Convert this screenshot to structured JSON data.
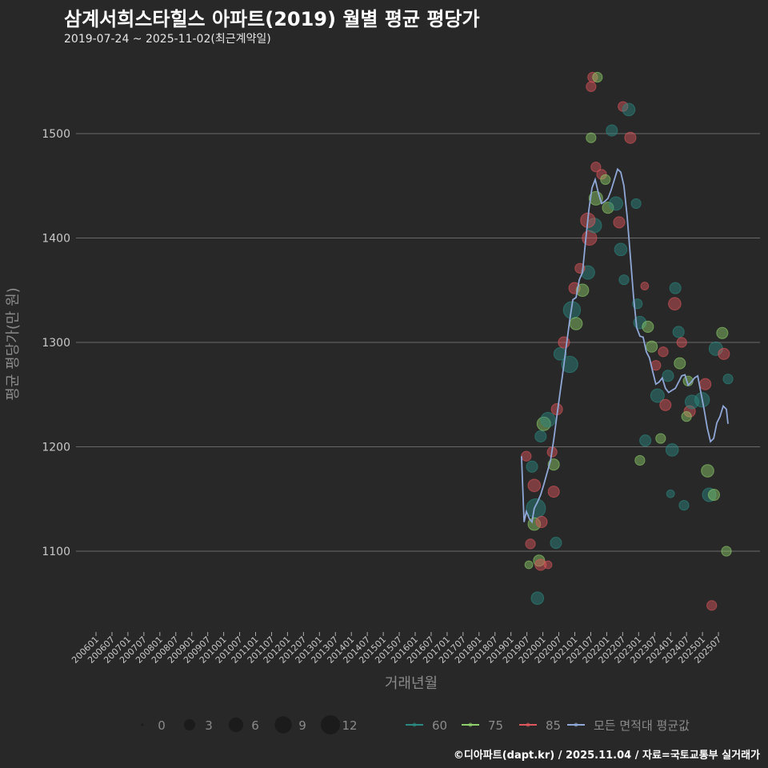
{
  "header": {
    "title": "삼계서희스타힐스 아파트(2019) 월별 평균 평당가",
    "subtitle": "2019-07-24 ~ 2025-11-02(최근계약일)"
  },
  "caption": "©디아파트(dapt.kr) / 2025.11.04 / 자료=국토교통부 실거래가",
  "chart_data": {
    "type": "scatter",
    "title": "삼계서희스타힐스 아파트(2019) 월별 평균 평당가",
    "xlabel": "거래년월",
    "ylabel": "평균 평당가(만 원)",
    "xlim": [
      2006.0,
      2025.5
    ],
    "ylim": [
      1025,
      1570
    ],
    "grid": true,
    "yticks": [
      1100,
      1200,
      1300,
      1400,
      1500
    ],
    "xticks": [
      "200601",
      "200607",
      "200701",
      "200707",
      "200801",
      "200807",
      "200901",
      "200907",
      "201001",
      "201007",
      "201101",
      "201107",
      "201201",
      "201207",
      "201301",
      "201307",
      "201401",
      "201407",
      "201501",
      "201507",
      "201601",
      "201607",
      "201701",
      "201707",
      "201801",
      "201807",
      "201901",
      "201907",
      "202001",
      "202007",
      "202101",
      "202107",
      "202201",
      "202207",
      "202301",
      "202307",
      "202401",
      "202407",
      "202501",
      "202507"
    ],
    "colors": {
      "60": "#2a8a82",
      "75": "#8fd16a",
      "85": "#e0575b",
      "avg": "#8fa8d8"
    },
    "size_legend": {
      "values": [
        0,
        3,
        6,
        9,
        12
      ]
    },
    "color_legend": [
      {
        "key": "60",
        "label": "60"
      },
      {
        "key": "75",
        "label": "75"
      },
      {
        "key": "85",
        "label": "85"
      },
      {
        "key": "avg",
        "label": "모든 면적대 평균값"
      }
    ],
    "legend_position": "bottom",
    "points_columns": [
      "year",
      "value",
      "area",
      "count"
    ],
    "points": [
      [
        2019.48,
        1191,
        "85",
        2
      ],
      [
        2019.66,
        1181,
        "60",
        3
      ],
      [
        2019.73,
        1163,
        "85",
        4
      ],
      [
        2019.78,
        1141,
        "60",
        12
      ],
      [
        2019.73,
        1126,
        "75",
        4
      ],
      [
        2019.61,
        1107,
        "85",
        2
      ],
      [
        2019.56,
        1087,
        "75",
        1
      ],
      [
        2019.88,
        1091,
        "75",
        3
      ],
      [
        2019.96,
        1128,
        "85",
        3
      ],
      [
        2019.83,
        1055,
        "60",
        4
      ],
      [
        2019.93,
        1087,
        "85",
        3
      ],
      [
        2020.16,
        1087,
        "85",
        1
      ],
      [
        2019.93,
        1210,
        "60",
        3
      ],
      [
        2020.03,
        1222,
        "75",
        5
      ],
      [
        2020.16,
        1226,
        "60",
        6
      ],
      [
        2020.29,
        1195,
        "85",
        2
      ],
      [
        2020.34,
        1183,
        "75",
        3
      ],
      [
        2020.34,
        1157,
        "85",
        3
      ],
      [
        2020.41,
        1108,
        "60",
        3
      ],
      [
        2020.44,
        1236,
        "85",
        3
      ],
      [
        2020.54,
        1289,
        "60",
        4
      ],
      [
        2020.66,
        1300,
        "85",
        3
      ],
      [
        2020.84,
        1279,
        "60",
        8
      ],
      [
        2020.91,
        1331,
        "60",
        9
      ],
      [
        2020.99,
        1352,
        "85",
        3
      ],
      [
        2021.04,
        1318,
        "75",
        4
      ],
      [
        2021.24,
        1350,
        "75",
        4
      ],
      [
        2021.41,
        1367,
        "60",
        5
      ],
      [
        2021.46,
        1400,
        "85",
        6
      ],
      [
        2021.61,
        1412,
        "60",
        6
      ],
      [
        2021.66,
        1438,
        "75",
        5
      ],
      [
        2021.84,
        1461,
        "85",
        2
      ],
      [
        2022.04,
        1429,
        "75",
        3
      ],
      [
        2022.16,
        1503,
        "60",
        3
      ],
      [
        2022.29,
        1433,
        "60",
        5
      ],
      [
        2022.39,
        1415,
        "85",
        3
      ],
      [
        2022.44,
        1389,
        "60",
        4
      ],
      [
        2022.54,
        1360,
        "60",
        2
      ],
      [
        2022.51,
        1526,
        "85",
        2
      ],
      [
        2022.69,
        1523,
        "60",
        4
      ],
      [
        2022.74,
        1496,
        "85",
        3
      ],
      [
        2022.92,
        1433,
        "60",
        2
      ],
      [
        2022.96,
        1337,
        "60",
        2
      ],
      [
        2023.04,
        1319,
        "60",
        4
      ],
      [
        2023.19,
        1354,
        "85",
        1
      ],
      [
        2023.29,
        1315,
        "75",
        3
      ],
      [
        2023.41,
        1296,
        "75",
        3
      ],
      [
        2023.54,
        1278,
        "85",
        2
      ],
      [
        2023.59,
        1249,
        "60",
        5
      ],
      [
        2023.69,
        1208,
        "75",
        2
      ],
      [
        2023.84,
        1240,
        "85",
        3
      ],
      [
        2023.92,
        1268,
        "60",
        3
      ],
      [
        2024.15,
        1352,
        "60",
        3
      ],
      [
        2024.13,
        1337,
        "85",
        4
      ],
      [
        2024.25,
        1310,
        "60",
        3
      ],
      [
        2024.35,
        1300,
        "85",
        2
      ],
      [
        2024.29,
        1280,
        "75",
        3
      ],
      [
        2024.55,
        1263,
        "75",
        2
      ],
      [
        2024.6,
        1234,
        "85",
        3
      ],
      [
        2024.67,
        1243,
        "60",
        5
      ],
      [
        2024.99,
        1245,
        "60",
        6
      ],
      [
        2025.09,
        1260,
        "85",
        3
      ],
      [
        2025.16,
        1177,
        "75",
        4
      ],
      [
        2025.21,
        1154,
        "60",
        5
      ],
      [
        2025.29,
        1048,
        "85",
        2
      ],
      [
        2025.36,
        1154,
        "75",
        3
      ],
      [
        2025.42,
        1294,
        "60",
        5
      ],
      [
        2025.62,
        1309,
        "75",
        3
      ],
      [
        2025.67,
        1289,
        "85",
        3
      ],
      [
        2025.75,
        1100,
        "75",
        2
      ],
      [
        2025.8,
        1265,
        "60",
        2
      ],
      [
        2023.21,
        1206,
        "60",
        3
      ],
      [
        2023.04,
        1187,
        "75",
        2
      ],
      [
        2024.05,
        1197,
        "60",
        4
      ],
      [
        2024.42,
        1144,
        "60",
        2
      ],
      [
        2024.0,
        1155,
        "60",
        1
      ],
      [
        2024.5,
        1229,
        "75",
        2
      ],
      [
        2023.77,
        1291,
        "85",
        2
      ],
      [
        2021.56,
        1554,
        "85",
        2
      ],
      [
        2021.71,
        1554,
        "75",
        2
      ],
      [
        2021.51,
        1545,
        "85",
        2
      ],
      [
        2021.51,
        1496,
        "75",
        2
      ],
      [
        2021.66,
        1468,
        "85",
        2
      ],
      [
        2021.96,
        1456,
        "75",
        2
      ],
      [
        2021.41,
        1417,
        "85",
        6
      ],
      [
        2021.16,
        1371,
        "85",
        2
      ]
    ],
    "average_line": [
      [
        2019.33,
        1191
      ],
      [
        2019.41,
        1128
      ],
      [
        2019.48,
        1138
      ],
      [
        2019.58,
        1131
      ],
      [
        2019.66,
        1128
      ],
      [
        2019.73,
        1141
      ],
      [
        2019.83,
        1147
      ],
      [
        2019.93,
        1154
      ],
      [
        2020.03,
        1164
      ],
      [
        2020.14,
        1176
      ],
      [
        2020.24,
        1187
      ],
      [
        2020.34,
        1207
      ],
      [
        2020.44,
        1230
      ],
      [
        2020.54,
        1252
      ],
      [
        2020.64,
        1274
      ],
      [
        2020.74,
        1298
      ],
      [
        2020.84,
        1321
      ],
      [
        2020.94,
        1341
      ],
      [
        2021.04,
        1343
      ],
      [
        2021.14,
        1360
      ],
      [
        2021.24,
        1367
      ],
      [
        2021.34,
        1398
      ],
      [
        2021.44,
        1427
      ],
      [
        2021.54,
        1448
      ],
      [
        2021.64,
        1456
      ],
      [
        2021.74,
        1443
      ],
      [
        2021.84,
        1433
      ],
      [
        2021.94,
        1435
      ],
      [
        2022.04,
        1438
      ],
      [
        2022.14,
        1446
      ],
      [
        2022.24,
        1456
      ],
      [
        2022.34,
        1466
      ],
      [
        2022.44,
        1463
      ],
      [
        2022.54,
        1450
      ],
      [
        2022.64,
        1421
      ],
      [
        2022.74,
        1383
      ],
      [
        2022.84,
        1344
      ],
      [
        2022.94,
        1314
      ],
      [
        2023.04,
        1306
      ],
      [
        2023.14,
        1305
      ],
      [
        2023.24,
        1291
      ],
      [
        2023.34,
        1285
      ],
      [
        2023.44,
        1272
      ],
      [
        2023.54,
        1260
      ],
      [
        2023.64,
        1262
      ],
      [
        2023.74,
        1266
      ],
      [
        2023.84,
        1256
      ],
      [
        2023.94,
        1252
      ],
      [
        2024.04,
        1254
      ],
      [
        2024.15,
        1256
      ],
      [
        2024.25,
        1262
      ],
      [
        2024.35,
        1268
      ],
      [
        2024.45,
        1269
      ],
      [
        2024.55,
        1259
      ],
      [
        2024.65,
        1262
      ],
      [
        2024.75,
        1266
      ],
      [
        2024.85,
        1268
      ],
      [
        2024.95,
        1252
      ],
      [
        2025.05,
        1236
      ],
      [
        2025.15,
        1218
      ],
      [
        2025.25,
        1205
      ],
      [
        2025.35,
        1208
      ],
      [
        2025.45,
        1223
      ],
      [
        2025.55,
        1229
      ],
      [
        2025.65,
        1239
      ],
      [
        2025.75,
        1236
      ],
      [
        2025.8,
        1222
      ]
    ]
  }
}
